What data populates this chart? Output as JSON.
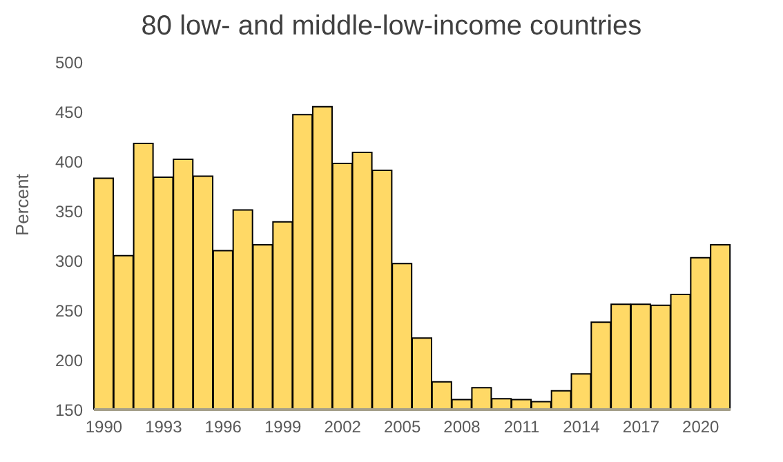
{
  "chart_data": {
    "type": "bar",
    "title": "80 low- and middle-low-income countries",
    "ylabel": "Percent",
    "categories": [
      "1990",
      null,
      null,
      "1993",
      null,
      null,
      "1996",
      null,
      null,
      "1999",
      null,
      null,
      "2002",
      null,
      null,
      "2005",
      null,
      null,
      "2008",
      null,
      null,
      "2011",
      null,
      null,
      "2014",
      null,
      null,
      "2017",
      null,
      null,
      "2020",
      null
    ],
    "values": [
      383,
      305,
      418,
      384,
      402,
      385,
      310,
      351,
      316,
      339,
      447,
      455,
      398,
      409,
      391,
      297,
      222,
      178,
      160,
      172,
      161,
      160,
      158,
      169,
      186,
      238,
      256,
      256,
      255,
      266,
      303,
      316
    ],
    "color": "#ffd966",
    "ylim": [
      150,
      500
    ],
    "yticks": [
      150,
      200,
      250,
      300,
      350,
      400,
      450,
      500
    ],
    "grid": false,
    "legend": false
  }
}
